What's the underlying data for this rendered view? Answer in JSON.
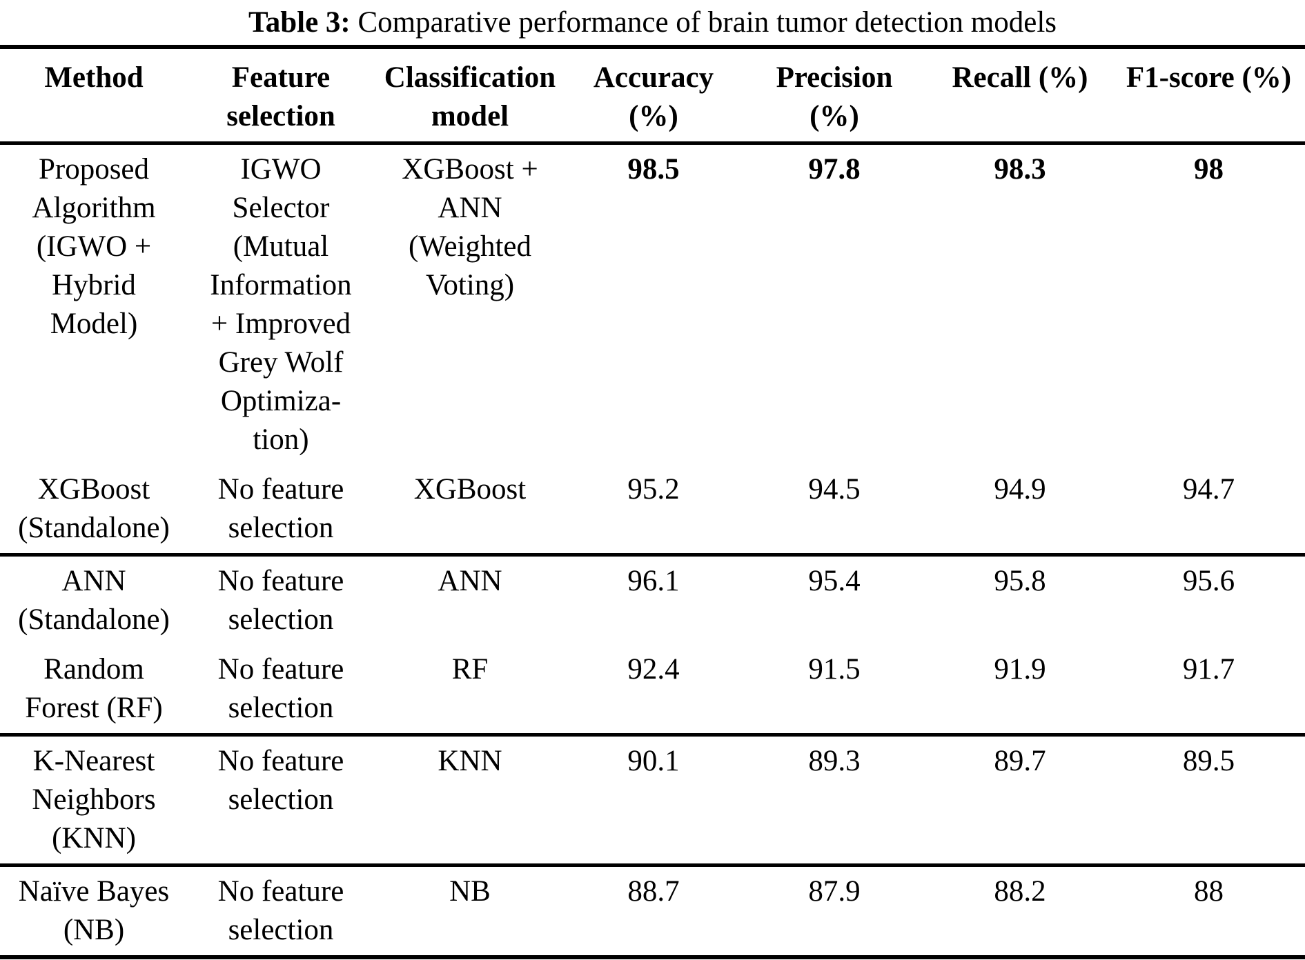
{
  "caption": {
    "label": "Table 3:",
    "text": "Comparative performance of brain tumor detection models"
  },
  "table": {
    "columns": [
      {
        "key": "method",
        "label": "Method"
      },
      {
        "key": "feature-selection",
        "label": "Feature\nselection"
      },
      {
        "key": "classification-model",
        "label": "Classification\nmodel"
      },
      {
        "key": "accuracy",
        "label": "Accuracy\n(%)"
      },
      {
        "key": "precision",
        "label": "Precision\n(%)"
      },
      {
        "key": "recall",
        "label": "Recall (%)"
      },
      {
        "key": "f1-score",
        "label": "F1-score (%)"
      }
    ],
    "rows": [
      {
        "method": "Proposed\nAlgorithm\n(IGWO +\nHybrid\nModel)",
        "feature-selection": "IGWO\nSelector\n(Mutual\nInformation\n+ Improved\nGrey Wolf\nOptimiza-\ntion)",
        "classification-model": "XGBoost +\nANN\n(Weighted\nVoting)",
        "accuracy": "98.5",
        "precision": "97.8",
        "recall": "98.3",
        "f1-score": "98",
        "bold_values": true,
        "rule_after": false
      },
      {
        "method": "XGBoost\n(Standalone)",
        "feature-selection": "No feature\nselection",
        "classification-model": "XGBoost",
        "accuracy": "95.2",
        "precision": "94.5",
        "recall": "94.9",
        "f1-score": "94.7",
        "bold_values": false,
        "rule_after": true
      },
      {
        "method": "ANN\n(Standalone)",
        "feature-selection": "No feature\nselection",
        "classification-model": "ANN",
        "accuracy": "96.1",
        "precision": "95.4",
        "recall": "95.8",
        "f1-score": "95.6",
        "bold_values": false,
        "rule_after": false
      },
      {
        "method": "Random\nForest (RF)",
        "feature-selection": "No feature\nselection",
        "classification-model": "RF",
        "accuracy": "92.4",
        "precision": "91.5",
        "recall": "91.9",
        "f1-score": "91.7",
        "bold_values": false,
        "rule_after": true
      },
      {
        "method": "K-Nearest\nNeighbors\n(KNN)",
        "feature-selection": "No feature\nselection",
        "classification-model": "KNN",
        "accuracy": "90.1",
        "precision": "89.3",
        "recall": "89.7",
        "f1-score": "89.5",
        "bold_values": false,
        "rule_after": true
      },
      {
        "method": "Naïve Bayes\n(NB)",
        "feature-selection": "No feature\nselection",
        "classification-model": "NB",
        "accuracy": "88.7",
        "precision": "87.9",
        "recall": "88.2",
        "f1-score": "88",
        "bold_values": false,
        "rule_after": false
      }
    ],
    "value_column_keys": [
      "accuracy",
      "precision",
      "recall",
      "f1-score"
    ]
  }
}
